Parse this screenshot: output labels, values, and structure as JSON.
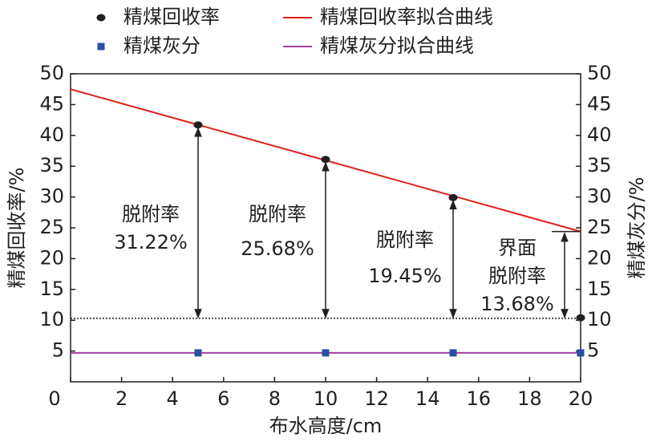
{
  "chart_data": {
    "type": "scatter",
    "x_label": "布水高度/cm",
    "y_label": "精煤回收率/%",
    "y2_label": "精煤灰分/%",
    "x": [
      5,
      10,
      15,
      20
    ],
    "series": [
      {
        "name": "精煤回收率",
        "type": "scatter",
        "marker": "circle",
        "color": "#231f20",
        "values": [
          41.7,
          36.1,
          29.9,
          10.4
        ]
      },
      {
        "name": "精煤灰分",
        "type": "scatter",
        "marker": "square",
        "color": "#2e4da0",
        "axis": "y2",
        "values": [
          4.7,
          4.7,
          4.7,
          4.7
        ]
      },
      {
        "name": "精煤回收率拟合曲线",
        "type": "line",
        "color": "#e0201b",
        "x": [
          0,
          20
        ],
        "values": [
          47.5,
          24.4
        ]
      },
      {
        "name": "精煤灰分拟合曲线",
        "type": "line",
        "color": "#a040a0",
        "axis": "y2",
        "x": [
          0,
          20
        ],
        "values": [
          4.7,
          4.7
        ]
      }
    ],
    "reference_line": {
      "value": 10.3,
      "style": "dotted",
      "color": "#231f20"
    },
    "annotations": [
      {
        "lines": [
          "脱附率",
          "31.22%"
        ]
      },
      {
        "lines": [
          "脱附率",
          "25.68%"
        ]
      },
      {
        "lines": [
          "脱附率",
          "19.45%"
        ]
      },
      {
        "lines": [
          "界面",
          "脱附率",
          "13.68%"
        ]
      }
    ],
    "xlim": [
      0,
      20
    ],
    "xticks": [
      0,
      2,
      4,
      6,
      8,
      10,
      12,
      14,
      16,
      18,
      20
    ],
    "ylim": [
      0,
      50
    ],
    "yticks": [
      5,
      10,
      15,
      20,
      25,
      30,
      35,
      40,
      45,
      50
    ],
    "y2lim": [
      0,
      50
    ],
    "y2ticks": [
      5,
      10,
      15,
      20,
      25,
      30,
      35,
      40,
      45,
      50
    ],
    "grid": false
  }
}
